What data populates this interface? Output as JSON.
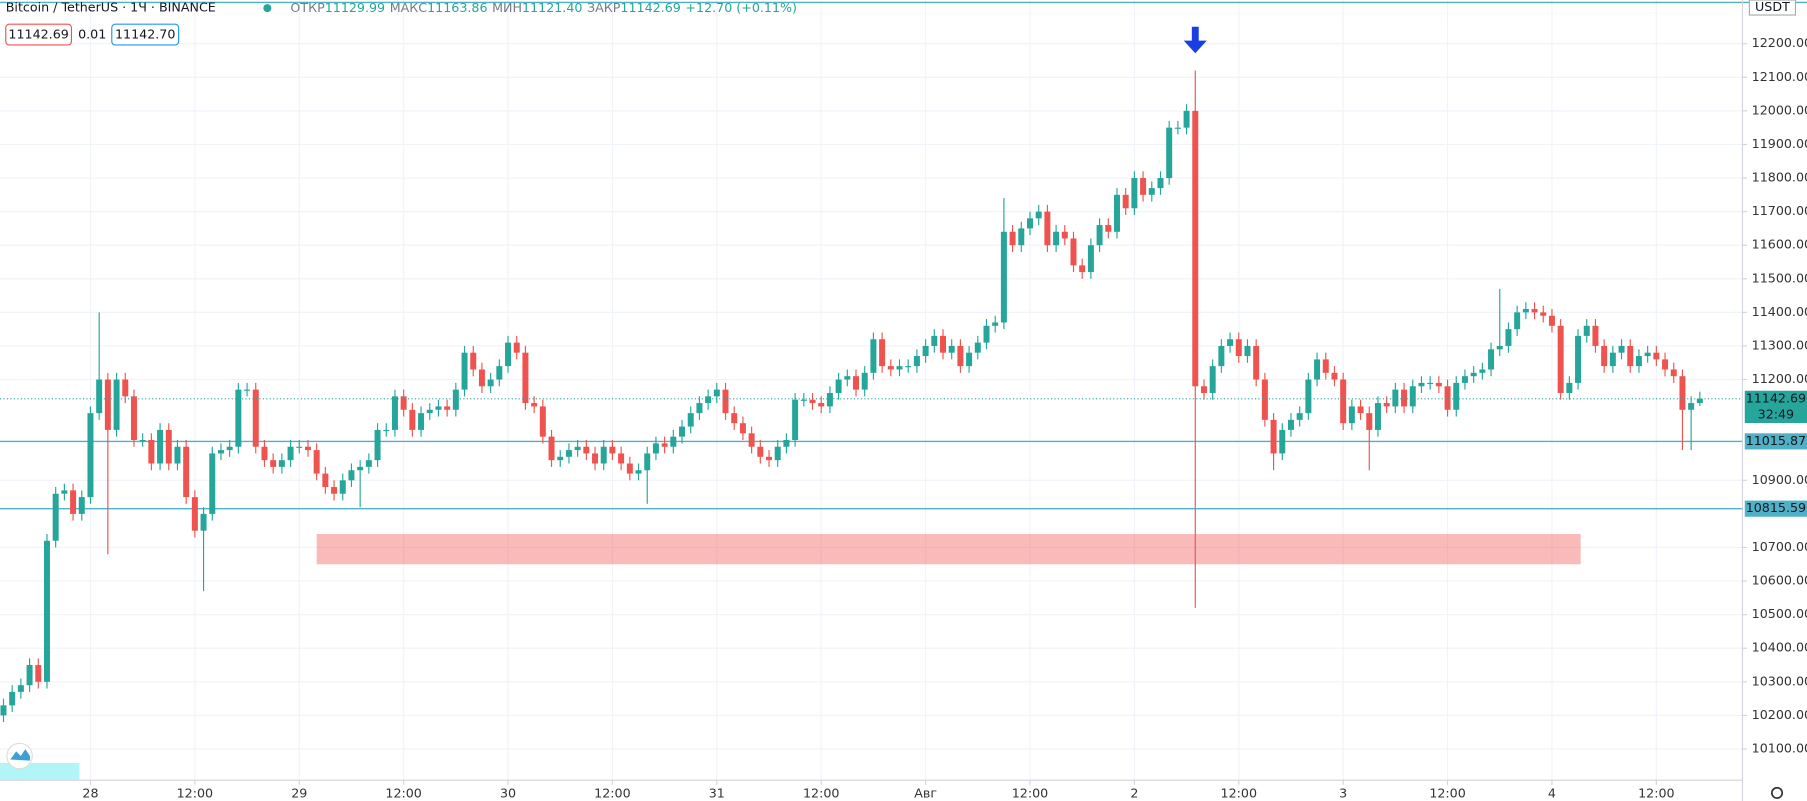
{
  "chart_data": {
    "type": "candlestick",
    "title": "Bitcoin / TetherUS · 1Ч · BINANCE",
    "legend": [
      {
        "label": "ОТКР",
        "value": "11129.99"
      },
      {
        "label": "МАКС",
        "value": "11163.86"
      },
      {
        "label": "МИН",
        "value": "11121.40"
      },
      {
        "label": "ЗАКР",
        "value": "11142.69"
      }
    ],
    "change": "+12.70 (+0.11%)",
    "quote": {
      "sell": "11142.69",
      "spread": "0.01",
      "buy": "11142.70"
    },
    "currency": "USDT",
    "up_color": "#26a69a",
    "down_color": "#ef5350",
    "grid": true,
    "ylim": [
      10007,
      12330
    ],
    "xlim": [
      -0.4,
      199.9
    ],
    "yticks": [
      {
        "value": 10100,
        "label": "10100.00"
      },
      {
        "value": 10200,
        "label": "10200.00"
      },
      {
        "value": 10300,
        "label": "10300.00"
      },
      {
        "value": 10400,
        "label": "10400.00"
      },
      {
        "value": 10500,
        "label": "10500.00"
      },
      {
        "value": 10600,
        "label": "10600.00"
      },
      {
        "value": 10700,
        "label": "10700.00"
      },
      {
        "value": 10900,
        "label": "10900.00"
      },
      {
        "value": 11200,
        "label": "11200.00"
      },
      {
        "value": 11300,
        "label": "11300.00"
      },
      {
        "value": 11400,
        "label": "11400.00"
      },
      {
        "value": 11500,
        "label": "11500.00"
      },
      {
        "value": 11600,
        "label": "11600.00"
      },
      {
        "value": 11700,
        "label": "11700.00"
      },
      {
        "value": 11800,
        "label": "11800.00"
      },
      {
        "value": 11900,
        "label": "11900.00"
      },
      {
        "value": 12000,
        "label": "12000.00"
      },
      {
        "value": 12100,
        "label": "12100.00"
      },
      {
        "value": 12200,
        "label": "12200.00"
      }
    ],
    "xticks": [
      {
        "value": 10,
        "label": "28"
      },
      {
        "value": 22,
        "label": "12:00"
      },
      {
        "value": 34,
        "label": "29"
      },
      {
        "value": 46,
        "label": "12:00"
      },
      {
        "value": 58,
        "label": "30"
      },
      {
        "value": 70,
        "label": "12:00"
      },
      {
        "value": 82,
        "label": "31"
      },
      {
        "value": 94,
        "label": "12:00"
      },
      {
        "value": 106,
        "label": "Авг"
      },
      {
        "value": 118,
        "label": "12:00"
      },
      {
        "value": 130,
        "label": "2"
      },
      {
        "value": 142,
        "label": "12:00"
      },
      {
        "value": 154,
        "label": "3"
      },
      {
        "value": 166,
        "label": "12:00"
      },
      {
        "value": 178,
        "label": "4"
      },
      {
        "value": 190,
        "label": "12:00"
      }
    ],
    "hlines": [
      11015.87,
      10815.59
    ],
    "top_line": 12323,
    "last_price": 11142.69,
    "countdown": "32:49",
    "zone": {
      "low": 10650,
      "high": 10740,
      "from": 36,
      "to": 181.3
    },
    "arrow_at": 137,
    "candles": [
      [
        10200,
        10250,
        10180,
        10230
      ],
      [
        10230,
        10290,
        10210,
        10270
      ],
      [
        10270,
        10310,
        10250,
        10290
      ],
      [
        10290,
        10370,
        10270,
        10350
      ],
      [
        10350,
        10370,
        10280,
        10300
      ],
      [
        10300,
        10740,
        10280,
        10720
      ],
      [
        10720,
        10880,
        10700,
        10860
      ],
      [
        10860,
        10890,
        10840,
        10870
      ],
      [
        10870,
        10890,
        10780,
        10800
      ],
      [
        10800,
        10870,
        10780,
        10850
      ],
      [
        10850,
        11120,
        10830,
        11100
      ],
      [
        11100,
        11400,
        11080,
        11200
      ],
      [
        11200,
        11220,
        10680,
        11050
      ],
      [
        11050,
        11220,
        11030,
        11200
      ],
      [
        11200,
        11220,
        11130,
        11150
      ],
      [
        11150,
        11170,
        11000,
        11020
      ],
      [
        11020,
        11040,
        11000,
        11020
      ],
      [
        11020,
        11040,
        10930,
        10950
      ],
      [
        10950,
        11070,
        10930,
        11050
      ],
      [
        11050,
        11070,
        10930,
        10950
      ],
      [
        10950,
        11020,
        10930,
        11000
      ],
      [
        11000,
        11020,
        10830,
        10850
      ],
      [
        10850,
        10870,
        10730,
        10750
      ],
      [
        10750,
        10820,
        10570,
        10800
      ],
      [
        10800,
        11000,
        10780,
        10980
      ],
      [
        10980,
        11010,
        10960,
        10990
      ],
      [
        10990,
        11020,
        10970,
        11000
      ],
      [
        11000,
        11190,
        10980,
        11170
      ],
      [
        11170,
        11190,
        11150,
        11170
      ],
      [
        11170,
        11190,
        10980,
        11000
      ],
      [
        11000,
        11020,
        10940,
        10960
      ],
      [
        10960,
        10980,
        10920,
        10940
      ],
      [
        10940,
        10980,
        10920,
        10960
      ],
      [
        10960,
        11020,
        10940,
        11000
      ],
      [
        11000,
        11020,
        10980,
        11000
      ],
      [
        11000,
        11020,
        10970,
        10990
      ],
      [
        10990,
        11010,
        10900,
        10920
      ],
      [
        10920,
        10940,
        10860,
        10880
      ],
      [
        10880,
        10900,
        10840,
        10860
      ],
      [
        10860,
        10920,
        10840,
        10900
      ],
      [
        10900,
        10950,
        10880,
        10930
      ],
      [
        10930,
        10960,
        10820,
        10940
      ],
      [
        10940,
        10980,
        10920,
        10960
      ],
      [
        10960,
        11070,
        10940,
        11050
      ],
      [
        11050,
        11070,
        11030,
        11050
      ],
      [
        11050,
        11170,
        11030,
        11150
      ],
      [
        11150,
        11170,
        11090,
        11110
      ],
      [
        11110,
        11130,
        11030,
        11050
      ],
      [
        11050,
        11120,
        11030,
        11100
      ],
      [
        11100,
        11130,
        11080,
        11110
      ],
      [
        11110,
        11140,
        11090,
        11120
      ],
      [
        11120,
        11140,
        11090,
        11110
      ],
      [
        11110,
        11190,
        11090,
        11170
      ],
      [
        11170,
        11300,
        11150,
        11280
      ],
      [
        11280,
        11300,
        11210,
        11230
      ],
      [
        11230,
        11250,
        11160,
        11180
      ],
      [
        11180,
        11220,
        11160,
        11200
      ],
      [
        11200,
        11260,
        11180,
        11240
      ],
      [
        11240,
        11330,
        11220,
        11310
      ],
      [
        11310,
        11330,
        11260,
        11280
      ],
      [
        11280,
        11300,
        11110,
        11130
      ],
      [
        11130,
        11150,
        11100,
        11120
      ],
      [
        11120,
        11140,
        11010,
        11030
      ],
      [
        11030,
        11050,
        10940,
        10960
      ],
      [
        10960,
        10990,
        10940,
        10970
      ],
      [
        10970,
        11010,
        10950,
        10990
      ],
      [
        10990,
        11020,
        10970,
        11000
      ],
      [
        11000,
        11020,
        10960,
        10980
      ],
      [
        10980,
        11000,
        10930,
        10950
      ],
      [
        10950,
        11020,
        10930,
        11000
      ],
      [
        11000,
        11020,
        10960,
        10980
      ],
      [
        10980,
        11000,
        10930,
        10950
      ],
      [
        10950,
        10970,
        10900,
        10920
      ],
      [
        10920,
        10950,
        10900,
        10930
      ],
      [
        10930,
        11000,
        10830,
        10980
      ],
      [
        10980,
        11030,
        10960,
        11010
      ],
      [
        11010,
        11030,
        10980,
        11000
      ],
      [
        11000,
        11050,
        10980,
        11030
      ],
      [
        11030,
        11080,
        11010,
        11060
      ],
      [
        11060,
        11120,
        11040,
        11100
      ],
      [
        11100,
        11150,
        11080,
        11130
      ],
      [
        11130,
        11170,
        11110,
        11150
      ],
      [
        11150,
        11190,
        11130,
        11170
      ],
      [
        11170,
        11190,
        11080,
        11100
      ],
      [
        11100,
        11120,
        11050,
        11070
      ],
      [
        11070,
        11090,
        11020,
        11040
      ],
      [
        11040,
        11060,
        10980,
        11000
      ],
      [
        11000,
        11020,
        10950,
        10970
      ],
      [
        10970,
        10990,
        10940,
        10960
      ],
      [
        10960,
        11020,
        10940,
        11000
      ],
      [
        11000,
        11040,
        10980,
        11020
      ],
      [
        11020,
        11160,
        11000,
        11140
      ],
      [
        11140,
        11160,
        11120,
        11140
      ],
      [
        11140,
        11160,
        11110,
        11130
      ],
      [
        11130,
        11150,
        11100,
        11120
      ],
      [
        11120,
        11180,
        11100,
        11160
      ],
      [
        11160,
        11220,
        11140,
        11200
      ],
      [
        11200,
        11230,
        11180,
        11210
      ],
      [
        11210,
        11230,
        11150,
        11170
      ],
      [
        11170,
        11240,
        11150,
        11220
      ],
      [
        11220,
        11340,
        11200,
        11320
      ],
      [
        11320,
        11340,
        11220,
        11240
      ],
      [
        11240,
        11260,
        11210,
        11230
      ],
      [
        11230,
        11260,
        11210,
        11240
      ],
      [
        11240,
        11260,
        11220,
        11240
      ],
      [
        11240,
        11290,
        11220,
        11270
      ],
      [
        11270,
        11320,
        11250,
        11300
      ],
      [
        11300,
        11350,
        11280,
        11330
      ],
      [
        11330,
        11350,
        11260,
        11280
      ],
      [
        11280,
        11320,
        11260,
        11300
      ],
      [
        11300,
        11320,
        11220,
        11240
      ],
      [
        11240,
        11300,
        11220,
        11280
      ],
      [
        11280,
        11330,
        11260,
        11310
      ],
      [
        11310,
        11380,
        11290,
        11360
      ],
      [
        11360,
        11390,
        11340,
        11370
      ],
      [
        11370,
        11740,
        11350,
        11640
      ],
      [
        11640,
        11660,
        11580,
        11600
      ],
      [
        11600,
        11670,
        11580,
        11650
      ],
      [
        11650,
        11700,
        11630,
        11680
      ],
      [
        11680,
        11720,
        11660,
        11700
      ],
      [
        11700,
        11720,
        11580,
        11600
      ],
      [
        11600,
        11660,
        11580,
        11640
      ],
      [
        11640,
        11660,
        11600,
        11620
      ],
      [
        11620,
        11640,
        11520,
        11540
      ],
      [
        11540,
        11560,
        11500,
        11520
      ],
      [
        11520,
        11620,
        11500,
        11600
      ],
      [
        11600,
        11680,
        11580,
        11660
      ],
      [
        11660,
        11680,
        11620,
        11640
      ],
      [
        11640,
        11770,
        11620,
        11750
      ],
      [
        11750,
        11770,
        11690,
        11710
      ],
      [
        11710,
        11820,
        11690,
        11800
      ],
      [
        11800,
        11820,
        11730,
        11750
      ],
      [
        11750,
        11790,
        11730,
        11770
      ],
      [
        11770,
        11820,
        11750,
        11800
      ],
      [
        11800,
        11970,
        11780,
        11950
      ],
      [
        11950,
        11970,
        11930,
        11950
      ],
      [
        11950,
        12020,
        11930,
        12000
      ],
      [
        12000,
        12120,
        10520,
        11180
      ],
      [
        11180,
        11200,
        11140,
        11160
      ],
      [
        11160,
        11260,
        11140,
        11240
      ],
      [
        11240,
        11320,
        11220,
        11300
      ],
      [
        11300,
        11340,
        11280,
        11320
      ],
      [
        11320,
        11340,
        11250,
        11270
      ],
      [
        11270,
        11320,
        11250,
        11300
      ],
      [
        11300,
        11320,
        11180,
        11200
      ],
      [
        11200,
        11220,
        11060,
        11080
      ],
      [
        11080,
        11100,
        10930,
        10980
      ],
      [
        10980,
        11070,
        10960,
        11050
      ],
      [
        11050,
        11100,
        11030,
        11080
      ],
      [
        11080,
        11120,
        11060,
        11100
      ],
      [
        11100,
        11220,
        11080,
        11200
      ],
      [
        11200,
        11280,
        11180,
        11260
      ],
      [
        11260,
        11280,
        11200,
        11220
      ],
      [
        11220,
        11240,
        11180,
        11200
      ],
      [
        11200,
        11220,
        11050,
        11070
      ],
      [
        11070,
        11140,
        11050,
        11120
      ],
      [
        11120,
        11140,
        11080,
        11100
      ],
      [
        11100,
        11120,
        10930,
        11050
      ],
      [
        11050,
        11150,
        11030,
        11130
      ],
      [
        11130,
        11150,
        11100,
        11120
      ],
      [
        11120,
        11190,
        11100,
        11170
      ],
      [
        11170,
        11190,
        11100,
        11120
      ],
      [
        11120,
        11200,
        11100,
        11180
      ],
      [
        11180,
        11210,
        11160,
        11190
      ],
      [
        11190,
        11210,
        11170,
        11190
      ],
      [
        11190,
        11210,
        11160,
        11180
      ],
      [
        11180,
        11200,
        11090,
        11110
      ],
      [
        11110,
        11210,
        11090,
        11190
      ],
      [
        11190,
        11230,
        11170,
        11210
      ],
      [
        11210,
        11240,
        11190,
        11220
      ],
      [
        11220,
        11250,
        11200,
        11230
      ],
      [
        11230,
        11310,
        11210,
        11290
      ],
      [
        11290,
        11470,
        11270,
        11300
      ],
      [
        11300,
        11370,
        11280,
        11350
      ],
      [
        11350,
        11420,
        11330,
        11400
      ],
      [
        11400,
        11430,
        11380,
        11410
      ],
      [
        11410,
        11430,
        11380,
        11400
      ],
      [
        11400,
        11420,
        11370,
        11390
      ],
      [
        11390,
        11410,
        11340,
        11360
      ],
      [
        11360,
        11380,
        11140,
        11160
      ],
      [
        11160,
        11210,
        11140,
        11190
      ],
      [
        11190,
        11350,
        11170,
        11330
      ],
      [
        11330,
        11380,
        11310,
        11360
      ],
      [
        11360,
        11380,
        11280,
        11300
      ],
      [
        11300,
        11320,
        11220,
        11240
      ],
      [
        11240,
        11300,
        11220,
        11280
      ],
      [
        11280,
        11320,
        11260,
        11300
      ],
      [
        11300,
        11320,
        11220,
        11240
      ],
      [
        11240,
        11290,
        11220,
        11270
      ],
      [
        11270,
        11300,
        11250,
        11280
      ],
      [
        11280,
        11300,
        11240,
        11260
      ],
      [
        11260,
        11280,
        11210,
        11230
      ],
      [
        11230,
        11250,
        11190,
        11210
      ],
      [
        11210,
        11230,
        10990,
        11110
      ],
      [
        11110,
        11150,
        10990,
        11129.99
      ],
      [
        11129.99,
        11163.86,
        11121.4,
        11142.69
      ]
    ]
  }
}
